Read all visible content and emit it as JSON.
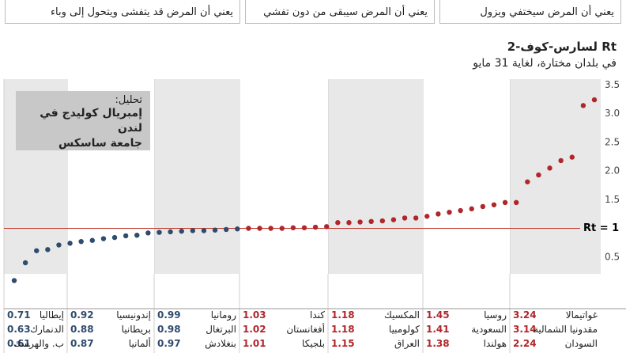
{
  "legend_boxes": [
    "يعني أن المرض سيختفي ويزول",
    "يعني أن المرض سيبقى من دون تفشي",
    "يعني أن المرض قد يتفشى ويتحول إلى وباء"
  ],
  "chart_data": {
    "type": "dot",
    "title": "Rt لسارس-كوف-2",
    "subtitle": "في بلدان مختارة، لغاية 31 مايو",
    "annotation": {
      "heading": "تحليل:",
      "lines": [
        "إمبريال كوليدج في لندن",
        "جامعة ساسكس"
      ]
    },
    "values": [
      0.09,
      0.4,
      0.61,
      0.63,
      0.71,
      0.74,
      0.77,
      0.79,
      0.82,
      0.84,
      0.87,
      0.88,
      0.92,
      0.93,
      0.94,
      0.95,
      0.96,
      0.96,
      0.97,
      0.98,
      0.99,
      1.0,
      1.0,
      1.0,
      1.0,
      1.01,
      1.01,
      1.02,
      1.03,
      1.1,
      1.1,
      1.11,
      1.12,
      1.13,
      1.15,
      1.18,
      1.18,
      1.21,
      1.25,
      1.28,
      1.31,
      1.34,
      1.38,
      1.41,
      1.45,
      1.45,
      1.81,
      1.93,
      2.05,
      2.18,
      2.24,
      3.14,
      3.24
    ],
    "colors": {
      "below": "#2f4b6e",
      "above": "#b0262a"
    },
    "reference": {
      "value": 1,
      "label": "Rt = 1",
      "color": "#c0392b"
    },
    "ylim": [
      -0.4,
      3.6
    ],
    "yticks": [
      0.5,
      1.5,
      {
        "value": 2,
        "label": "2.0"
      },
      2.5,
      {
        "value": 3,
        "label": "3.0"
      },
      3.5
    ],
    "band_colors": [
      "#e8e8e8",
      "#ffffff"
    ]
  },
  "table": {
    "columns": [
      {
        "color": "#b0262a",
        "rows": [
          {
            "name": "غواتيمالا",
            "value": "3.24"
          },
          {
            "name": "مقدونيا الشمالية",
            "value": "3.14"
          },
          {
            "name": "السودان",
            "value": "2.24"
          }
        ]
      },
      {
        "color": "#b0262a",
        "rows": [
          {
            "name": "روسيا",
            "value": "1.45"
          },
          {
            "name": "السعودية",
            "value": "1.41"
          },
          {
            "name": "هولندا",
            "value": "1.38"
          }
        ]
      },
      {
        "color": "#b0262a",
        "rows": [
          {
            "name": "المكسيك",
            "value": "1.18"
          },
          {
            "name": "كولومبيا",
            "value": "1.18"
          },
          {
            "name": "العراق",
            "value": "1.15"
          }
        ]
      },
      {
        "color": "#b0262a",
        "rows": [
          {
            "name": "كندا",
            "value": "1.03"
          },
          {
            "name": "أفغانستان",
            "value": "1.02"
          },
          {
            "name": "بلجيكا",
            "value": "1.01"
          }
        ]
      },
      {
        "color": "#2f4b6e",
        "rows": [
          {
            "name": "رومانيا",
            "value": "0.99"
          },
          {
            "name": "البرتغال",
            "value": "0.98"
          },
          {
            "name": "بنغلادش",
            "value": "0.97"
          }
        ]
      },
      {
        "color": "#2f4b6e",
        "rows": [
          {
            "name": "إندونيسيا",
            "value": "0.92"
          },
          {
            "name": "بريطانيا",
            "value": "0.88"
          },
          {
            "name": "ألمانيا",
            "value": "0.87"
          }
        ]
      },
      {
        "color": "#2f4b6e",
        "rows": [
          {
            "name": "إيطاليا",
            "value": "0.71"
          },
          {
            "name": "الدنمارك",
            "value": "0.63"
          },
          {
            "name": "ب. والهرسك",
            "value": "0.61"
          }
        ]
      }
    ]
  }
}
